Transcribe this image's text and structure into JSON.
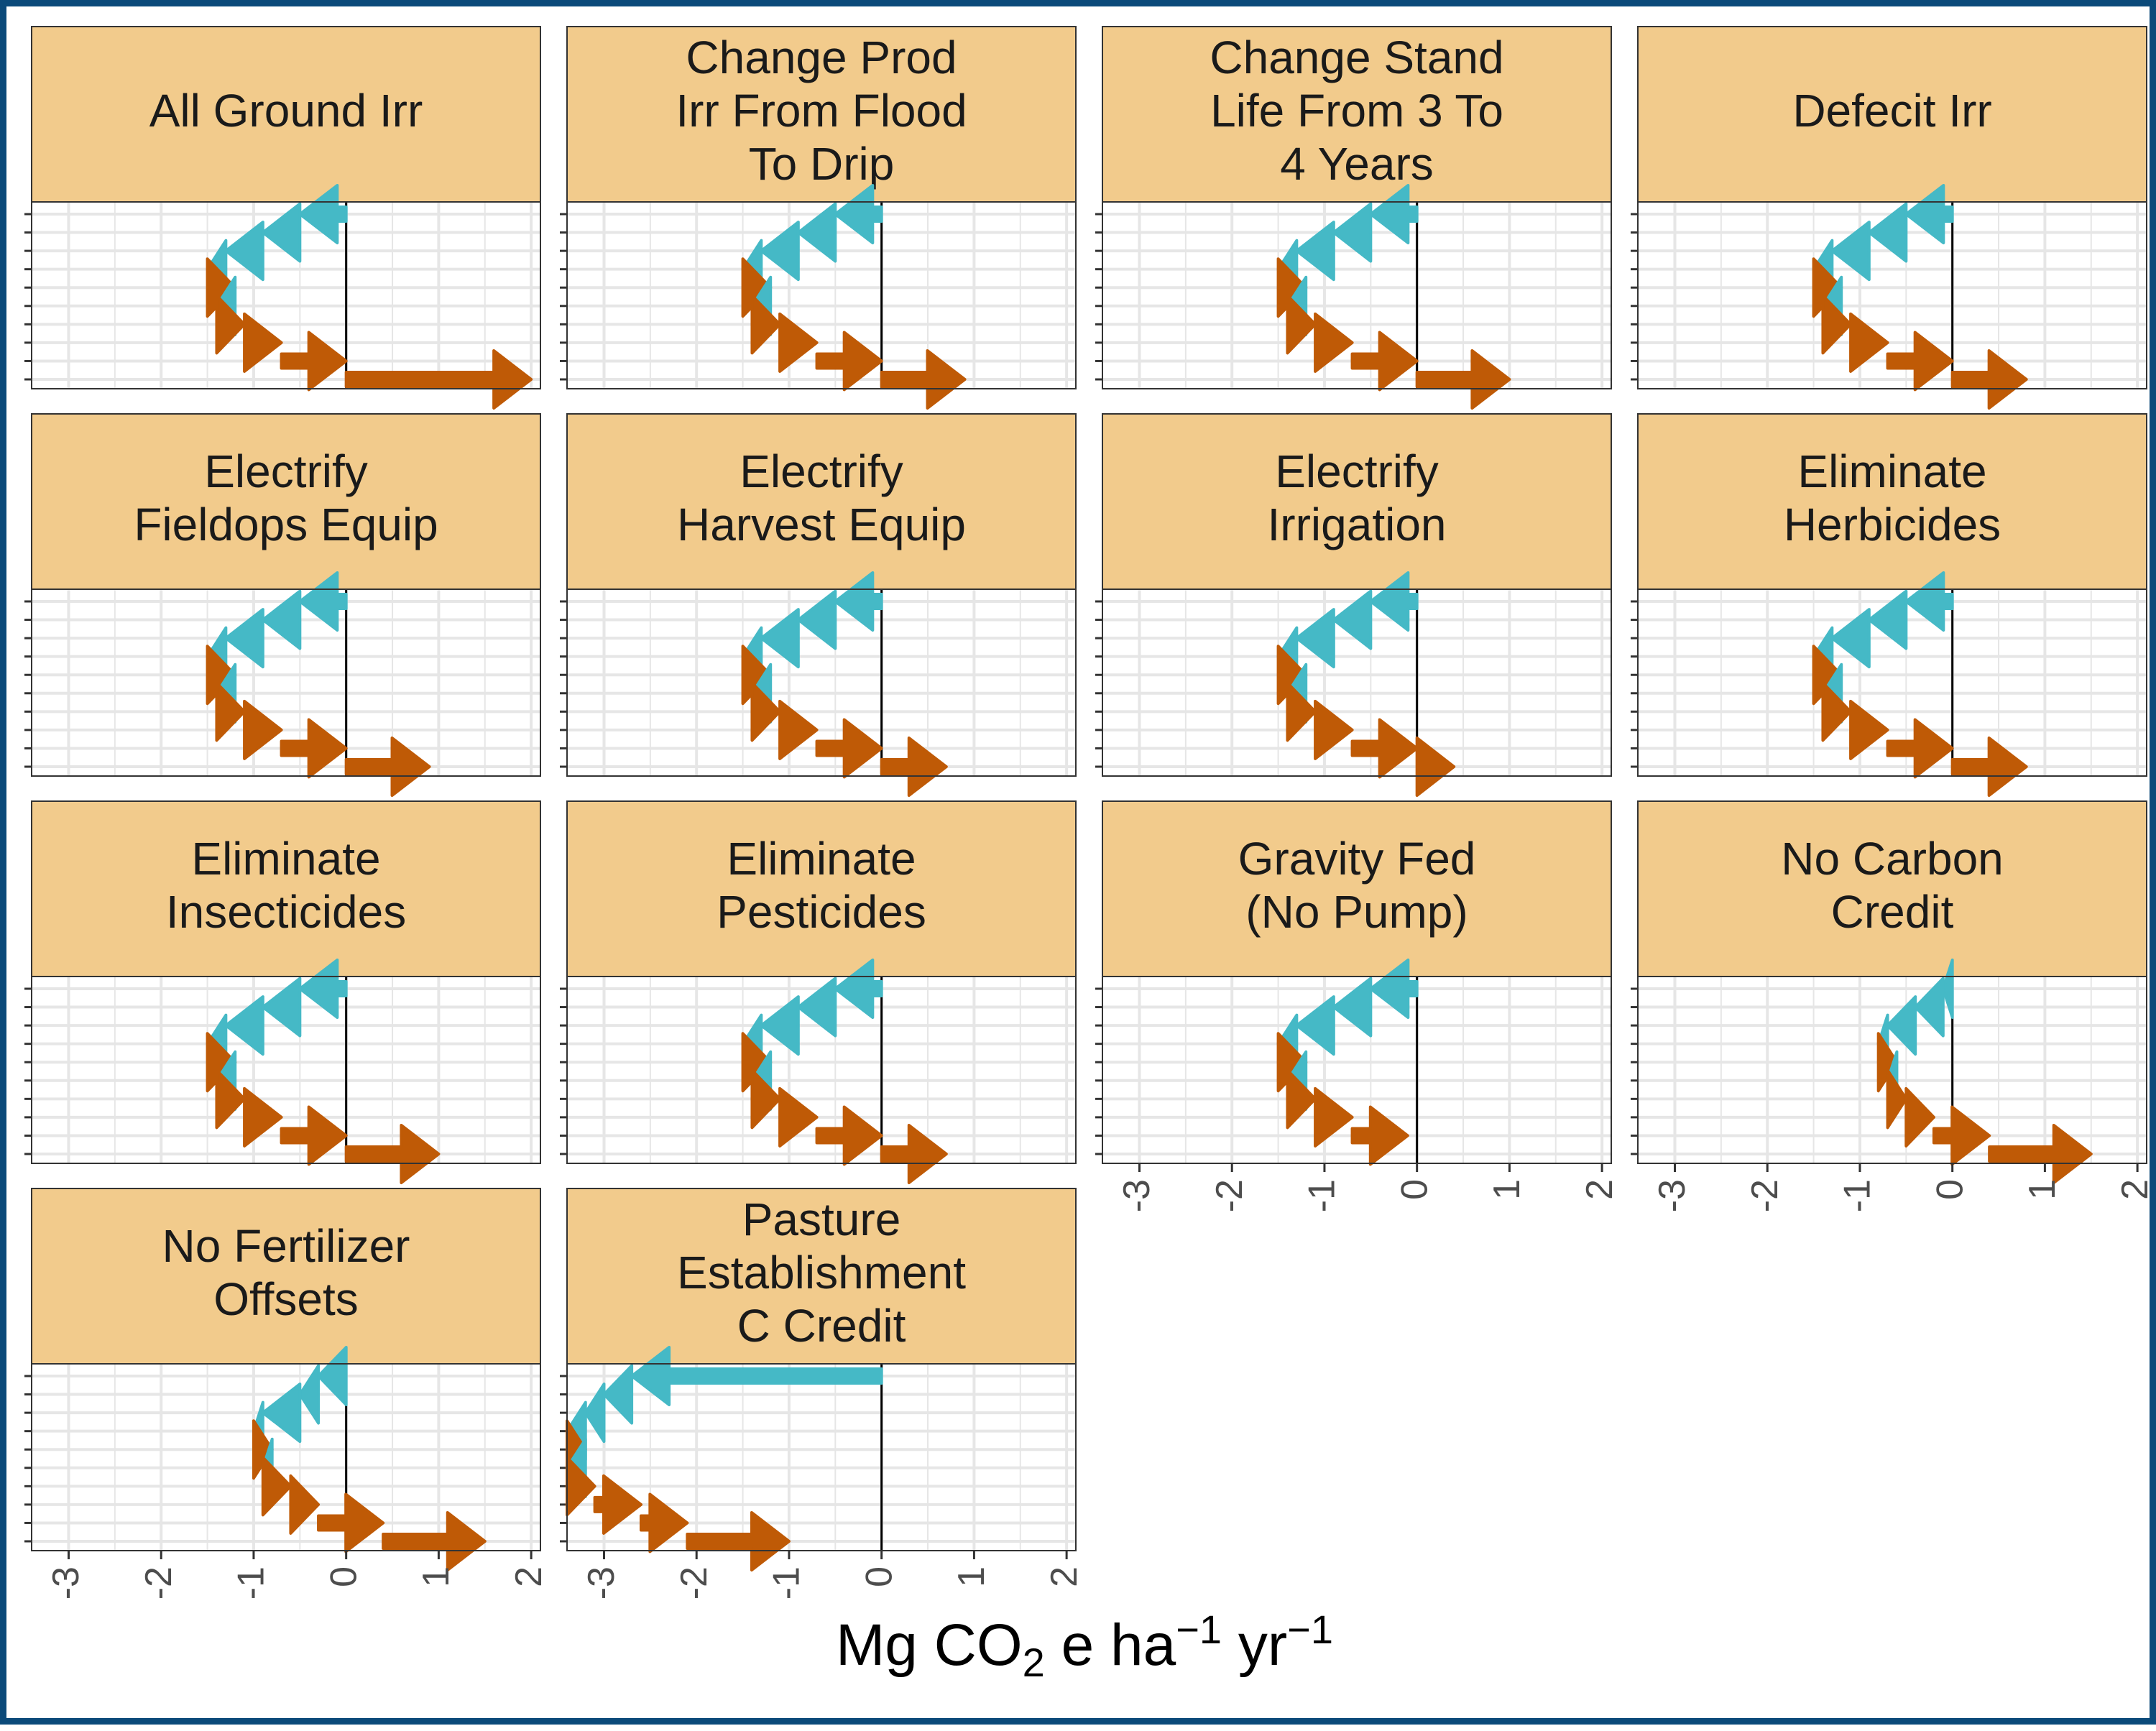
{
  "colors": {
    "frame": "#0b4a7a",
    "strip_fill": "#f2cb8c",
    "negative": "#45b9c6",
    "positive": "#bf5a06",
    "grid": "#e6e6e6",
    "zero_line": "#000000"
  },
  "chart_data": {
    "type": "faceted-waterfall-arrows",
    "xlabel_parts": [
      "Mg CO",
      "2",
      " e ha",
      "−1",
      " yr",
      "−1"
    ],
    "xlim": [
      -3.4,
      2.1
    ],
    "x_ticks": [
      "-3",
      "-2",
      "-1",
      "0",
      "1",
      "2"
    ],
    "x_tick_values": [
      -3,
      -2,
      -1,
      0,
      1,
      2
    ],
    "panels": [
      {
        "title": "All Ground Irr",
        "segments": [
          [
            0,
            -0.5
          ],
          [
            -0.5,
            -0.9
          ],
          [
            -0.9,
            -1.3
          ],
          [
            -1.3,
            -1.5
          ],
          [
            -1.5,
            -1.2
          ],
          [
            -1.2,
            -1.4
          ],
          [
            -1.4,
            -1.1
          ],
          [
            -1.1,
            -0.7
          ],
          [
            -0.7,
            0.0
          ],
          [
            0.0,
            2.0
          ]
        ]
      },
      {
        "title": "Change Prod\nIrr From Flood\nTo Drip",
        "segments": [
          [
            0,
            -0.5
          ],
          [
            -0.5,
            -0.9
          ],
          [
            -0.9,
            -1.3
          ],
          [
            -1.3,
            -1.5
          ],
          [
            -1.5,
            -1.2
          ],
          [
            -1.2,
            -1.4
          ],
          [
            -1.4,
            -1.1
          ],
          [
            -1.1,
            -0.7
          ],
          [
            -0.7,
            0.0
          ],
          [
            0.0,
            0.9
          ]
        ]
      },
      {
        "title": "Change Stand\nLife From 3 To\n4 Years",
        "segments": [
          [
            0,
            -0.5
          ],
          [
            -0.5,
            -0.9
          ],
          [
            -0.9,
            -1.3
          ],
          [
            -1.3,
            -1.5
          ],
          [
            -1.5,
            -1.2
          ],
          [
            -1.2,
            -1.4
          ],
          [
            -1.4,
            -1.1
          ],
          [
            -1.1,
            -0.7
          ],
          [
            -0.7,
            0.0
          ],
          [
            0.0,
            1.0
          ]
        ]
      },
      {
        "title": "Defecit Irr",
        "segments": [
          [
            0,
            -0.5
          ],
          [
            -0.5,
            -0.9
          ],
          [
            -0.9,
            -1.3
          ],
          [
            -1.3,
            -1.5
          ],
          [
            -1.5,
            -1.2
          ],
          [
            -1.2,
            -1.4
          ],
          [
            -1.4,
            -1.1
          ],
          [
            -1.1,
            -0.7
          ],
          [
            -0.7,
            0.0
          ],
          [
            0.0,
            0.8
          ]
        ]
      },
      {
        "title": "Electrify\nFieldops Equip",
        "segments": [
          [
            0,
            -0.5
          ],
          [
            -0.5,
            -0.9
          ],
          [
            -0.9,
            -1.3
          ],
          [
            -1.3,
            -1.5
          ],
          [
            -1.5,
            -1.2
          ],
          [
            -1.2,
            -1.4
          ],
          [
            -1.4,
            -1.1
          ],
          [
            -1.1,
            -0.7
          ],
          [
            -0.7,
            0.0
          ],
          [
            0.0,
            0.9
          ]
        ]
      },
      {
        "title": "Electrify\nHarvest Equip",
        "segments": [
          [
            0,
            -0.5
          ],
          [
            -0.5,
            -0.9
          ],
          [
            -0.9,
            -1.3
          ],
          [
            -1.3,
            -1.5
          ],
          [
            -1.5,
            -1.2
          ],
          [
            -1.2,
            -1.4
          ],
          [
            -1.4,
            -1.1
          ],
          [
            -1.1,
            -0.7
          ],
          [
            -0.7,
            0.0
          ],
          [
            0.0,
            0.7
          ]
        ]
      },
      {
        "title": "Electrify\nIrrigation",
        "segments": [
          [
            0,
            -0.5
          ],
          [
            -0.5,
            -0.9
          ],
          [
            -0.9,
            -1.3
          ],
          [
            -1.3,
            -1.5
          ],
          [
            -1.5,
            -1.2
          ],
          [
            -1.2,
            -1.4
          ],
          [
            -1.4,
            -1.1
          ],
          [
            -1.1,
            -0.7
          ],
          [
            -0.7,
            0.0
          ],
          [
            0.0,
            0.4
          ]
        ]
      },
      {
        "title": "Eliminate\nHerbicides",
        "segments": [
          [
            0,
            -0.5
          ],
          [
            -0.5,
            -0.9
          ],
          [
            -0.9,
            -1.3
          ],
          [
            -1.3,
            -1.5
          ],
          [
            -1.5,
            -1.2
          ],
          [
            -1.2,
            -1.4
          ],
          [
            -1.4,
            -1.1
          ],
          [
            -1.1,
            -0.7
          ],
          [
            -0.7,
            0.0
          ],
          [
            0.0,
            0.8
          ]
        ]
      },
      {
        "title": "Eliminate\nInsecticides",
        "segments": [
          [
            0,
            -0.5
          ],
          [
            -0.5,
            -0.9
          ],
          [
            -0.9,
            -1.3
          ],
          [
            -1.3,
            -1.5
          ],
          [
            -1.5,
            -1.2
          ],
          [
            -1.2,
            -1.4
          ],
          [
            -1.4,
            -1.1
          ],
          [
            -1.1,
            -0.7
          ],
          [
            -0.7,
            0.0
          ],
          [
            0.0,
            1.0
          ]
        ]
      },
      {
        "title": "Eliminate\nPesticides",
        "segments": [
          [
            0,
            -0.5
          ],
          [
            -0.5,
            -0.9
          ],
          [
            -0.9,
            -1.3
          ],
          [
            -1.3,
            -1.5
          ],
          [
            -1.5,
            -1.2
          ],
          [
            -1.2,
            -1.4
          ],
          [
            -1.4,
            -1.1
          ],
          [
            -1.1,
            -0.7
          ],
          [
            -0.7,
            0.0
          ],
          [
            0.0,
            0.7
          ]
        ]
      },
      {
        "title": "Gravity Fed\n(No Pump)",
        "segments": [
          [
            0,
            -0.5
          ],
          [
            -0.5,
            -0.9
          ],
          [
            -0.9,
            -1.3
          ],
          [
            -1.3,
            -1.5
          ],
          [
            -1.5,
            -1.2
          ],
          [
            -1.2,
            -1.4
          ],
          [
            -1.4,
            -1.1
          ],
          [
            -1.1,
            -0.7
          ],
          [
            -0.7,
            -0.1
          ]
        ]
      },
      {
        "title": "No Carbon\nCredit",
        "segments": [
          [
            0,
            -0.1
          ],
          [
            -0.1,
            -0.4
          ],
          [
            -0.4,
            -0.7
          ],
          [
            -0.7,
            -0.8
          ],
          [
            -0.8,
            -0.6
          ],
          [
            -0.6,
            -0.7
          ],
          [
            -0.7,
            -0.5
          ],
          [
            -0.5,
            -0.2
          ],
          [
            -0.2,
            0.4
          ],
          [
            0.4,
            1.5
          ]
        ]
      },
      {
        "title": "No Fertilizer\nOffsets",
        "segments": [
          [
            0,
            -0.3
          ],
          [
            -0.3,
            -0.5
          ],
          [
            -0.5,
            -0.9
          ],
          [
            -0.9,
            -1.0
          ],
          [
            -1.0,
            -0.8
          ],
          [
            -0.8,
            -0.9
          ],
          [
            -0.9,
            -0.6
          ],
          [
            -0.6,
            -0.3
          ],
          [
            -0.3,
            0.4
          ],
          [
            0.4,
            1.5
          ]
        ]
      },
      {
        "title": "Pasture\nEstablishment\nC Credit",
        "segments": [
          [
            0,
            -2.7
          ],
          [
            -2.7,
            -3.0
          ],
          [
            -3.0,
            -3.2
          ],
          [
            -3.2,
            -3.4
          ],
          [
            -3.4,
            -3.2
          ],
          [
            -3.2,
            -3.4
          ],
          [
            -3.4,
            -3.1
          ],
          [
            -3.1,
            -2.6
          ],
          [
            -2.6,
            -2.1
          ],
          [
            -2.1,
            -1.0
          ]
        ]
      }
    ]
  }
}
